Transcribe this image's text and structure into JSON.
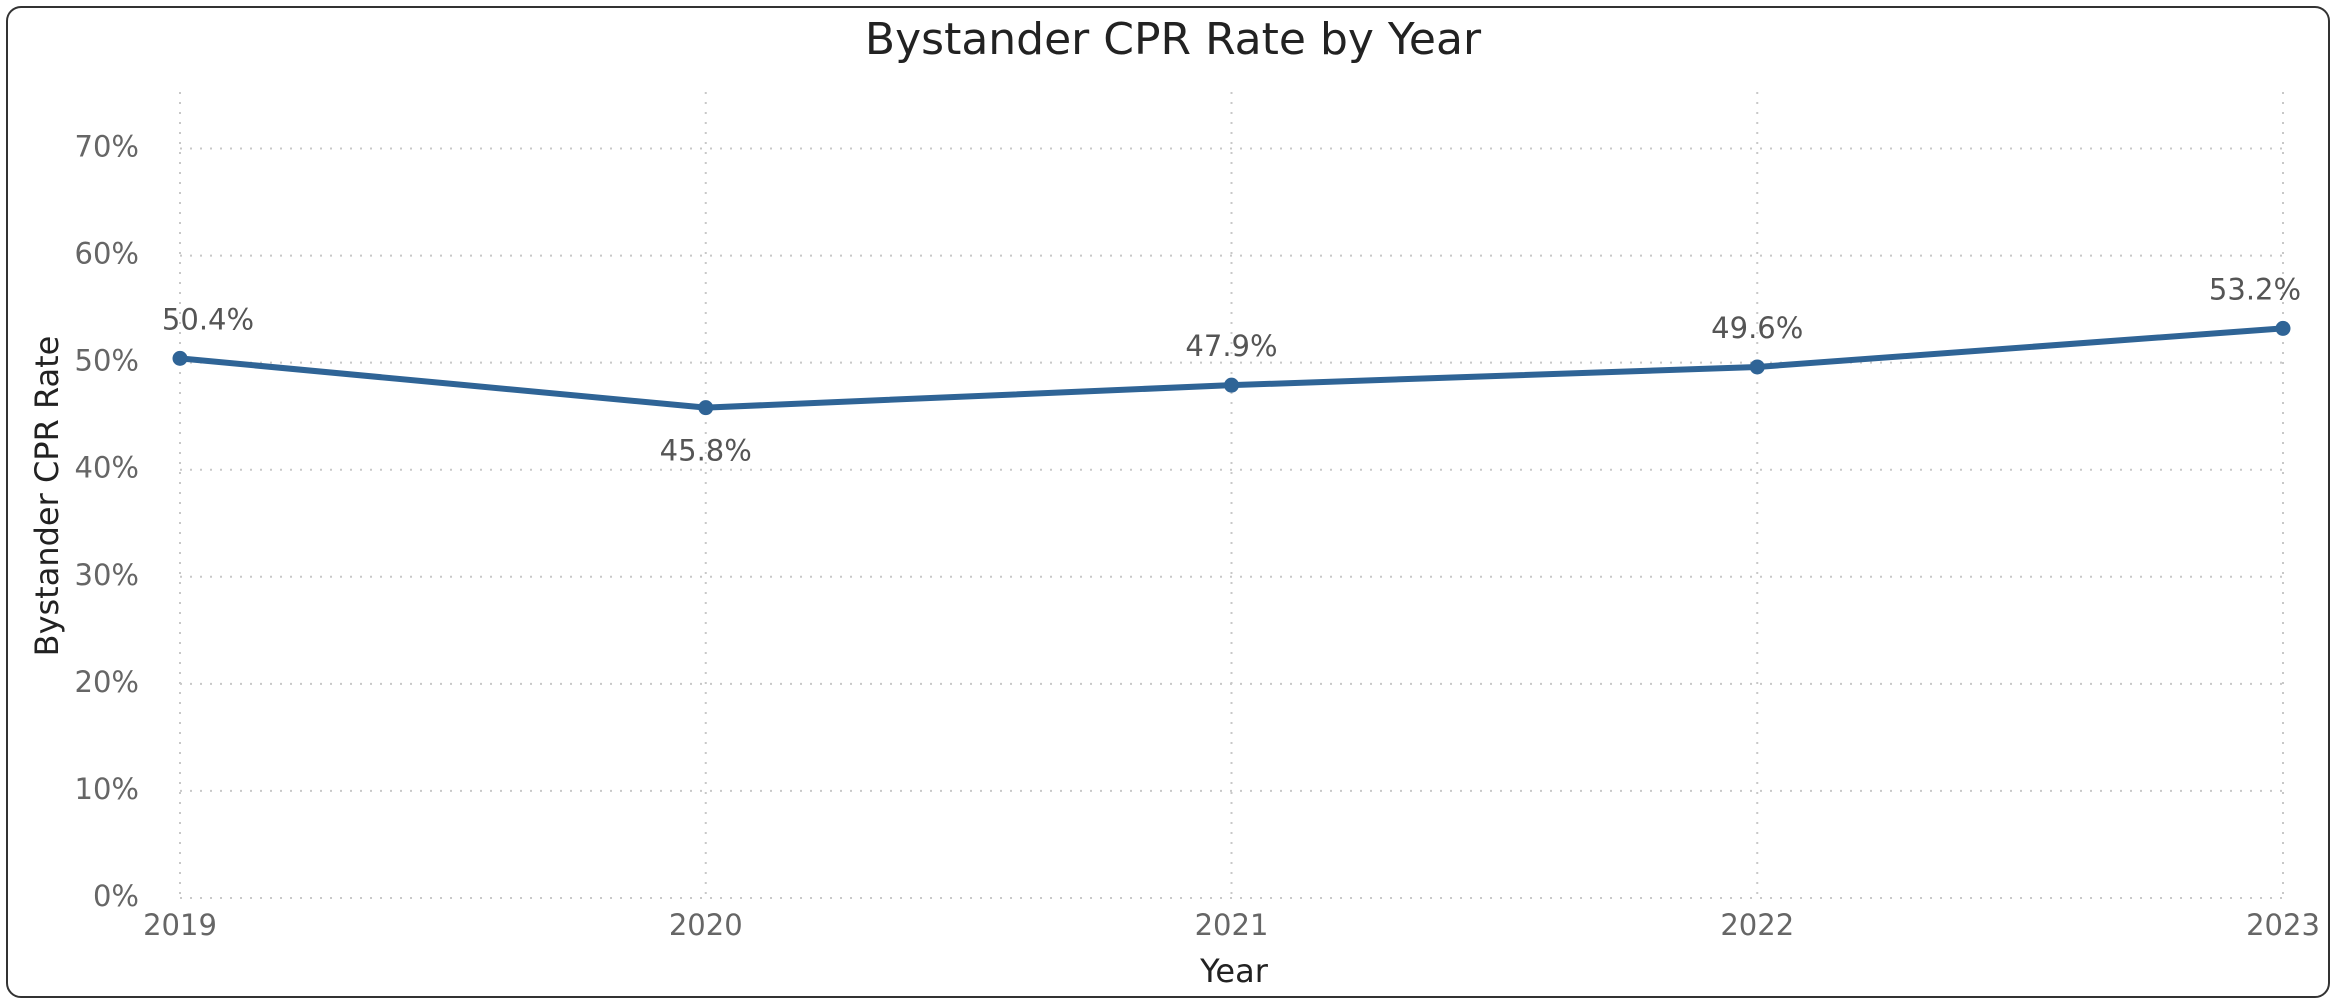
{
  "chart_data": {
    "type": "line",
    "title": "Bystander CPR Rate by Year",
    "x_label": "Year",
    "y_label": "Bystander CPR Rate",
    "categories": [
      "2019",
      "2020",
      "2021",
      "2022",
      "2023"
    ],
    "series": [
      {
        "name": "Bystander CPR Rate",
        "color": "#2f6496",
        "values": [
          50.4,
          45.8,
          47.9,
          49.6,
          53.2
        ],
        "value_labels": [
          "50.4%",
          "45.8%",
          "47.9%",
          "49.6%",
          "53.2%"
        ]
      }
    ],
    "ylim": [
      0,
      75
    ],
    "yticks": [
      {
        "value": 0,
        "label": "0%"
      },
      {
        "value": 10,
        "label": "10%"
      },
      {
        "value": 20,
        "label": "20%"
      },
      {
        "value": 30,
        "label": "30%"
      },
      {
        "value": 40,
        "label": "40%"
      },
      {
        "value": 50,
        "label": "50%"
      },
      {
        "value": 60,
        "label": "60%"
      },
      {
        "value": 70,
        "label": "70%"
      }
    ],
    "grid": true
  }
}
